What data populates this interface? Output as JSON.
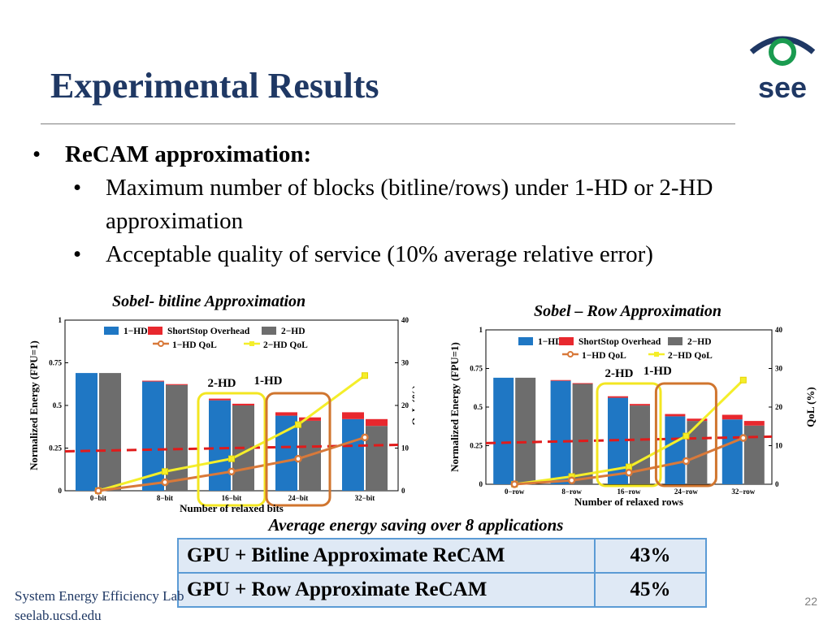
{
  "title": "Experimental Results",
  "logo_text": "see",
  "bullets": {
    "main": "ReCAM approximation:",
    "sub": [
      "Maximum number of blocks (bitline/rows) under 1-HD or 2-HD approximation",
      "Acceptable quality of service (10% average relative error)"
    ]
  },
  "colors": {
    "hd1": "#1f77c4",
    "overhead": "#e8282e",
    "hd2": "#6d6d6d",
    "q1": "#d8793a",
    "q2": "#f4ee2a",
    "threshold": "#e01b1b",
    "box_yellow": "#f3e621",
    "box_orange": "#d0752e"
  },
  "chart_data": [
    {
      "type": "bar",
      "title": "Sobel- bitline Approximation",
      "xlabel": "Number of relaxed bits",
      "ylabel": "Normalized Energy (FPU=1)",
      "ylabel_right": "QoL (%)",
      "categories": [
        "0−bit",
        "8−bit",
        "16−bit",
        "24−bit",
        "32−bit"
      ],
      "ylim": [
        0,
        1
      ],
      "yticks": [
        "0",
        "0.25",
        "0.5",
        "0.75",
        "1"
      ],
      "y2lim": [
        0,
        40
      ],
      "y2ticks": [
        "0",
        "10",
        "20",
        "30",
        "40"
      ],
      "series": [
        {
          "name": "1−HD",
          "values": [
            0.69,
            0.64,
            0.53,
            0.44,
            0.42
          ]
        },
        {
          "name": "ShortStop Overhead",
          "values": [
            0,
            0.005,
            0.01,
            0.02,
            0.04
          ]
        },
        {
          "name": "2−HD",
          "values": [
            0.69,
            0.62,
            0.5,
            0.41,
            0.38
          ]
        },
        {
          "name": "1−HD QoL",
          "values": [
            0,
            2,
            4.5,
            7.5,
            12.5
          ]
        },
        {
          "name": "2−HD QoL",
          "values": [
            0,
            4.5,
            7.5,
            15.5,
            27
          ]
        }
      ],
      "threshold_qol": 10,
      "annotations": [
        "2-HD",
        "1-HD"
      ]
    },
    {
      "type": "bar",
      "title": "Sobel – Row Approximation",
      "xlabel": "Number of relaxed rows",
      "ylabel": "Normalized Energy (FPU=1)",
      "ylabel_right": "QoL (%)",
      "categories": [
        "0−row",
        "8−row",
        "16−row",
        "24−row",
        "32−row"
      ],
      "ylim": [
        0,
        1
      ],
      "yticks": [
        "0",
        "0.25",
        "0.5",
        "0.75",
        "1"
      ],
      "y2lim": [
        0,
        40
      ],
      "y2ticks": [
        "0",
        "10",
        "20",
        "30",
        "40"
      ],
      "series": [
        {
          "name": "1−HD",
          "values": [
            0.69,
            0.67,
            0.56,
            0.44,
            0.42
          ]
        },
        {
          "name": "ShortStop Overhead",
          "values": [
            0,
            0.005,
            0.01,
            0.015,
            0.03
          ]
        },
        {
          "name": "2−HD",
          "values": [
            0.69,
            0.65,
            0.51,
            0.41,
            0.38
          ]
        },
        {
          "name": "1−HD QoL",
          "values": [
            0,
            1,
            3,
            6,
            12
          ]
        },
        {
          "name": "2−HD QoL",
          "values": [
            0,
            2,
            4.5,
            12.5,
            27
          ]
        }
      ],
      "threshold_qol": 11.5,
      "annotations": [
        "2-HD",
        "1-HD"
      ]
    }
  ],
  "summary": {
    "caption": "Average energy saving over 8 applications",
    "rows": [
      {
        "label": "GPU + Bitline Approximate ReCAM",
        "value": "43%"
      },
      {
        "label": "GPU + Row Approximate ReCAM",
        "value": "45%"
      }
    ]
  },
  "footer": {
    "line1": "System Energy Efficiency Lab",
    "line2": "seelab.ucsd.edu",
    "page": "22"
  }
}
